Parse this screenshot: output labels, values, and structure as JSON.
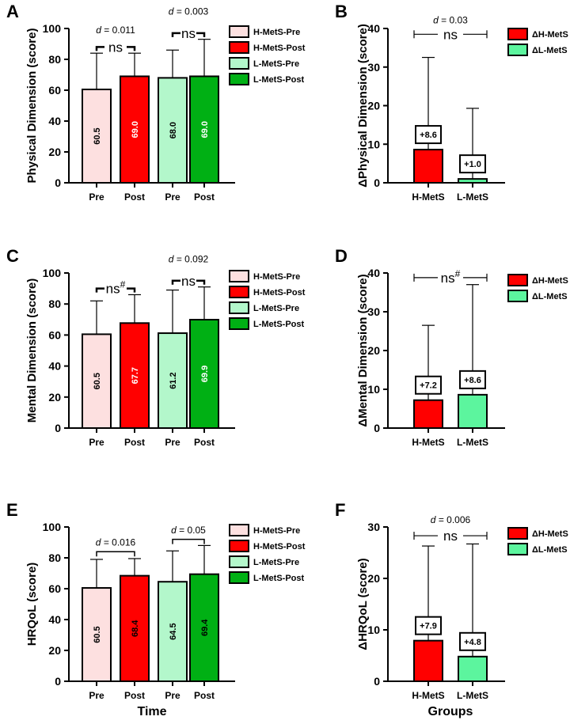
{
  "colors": {
    "h_pre": "#fde0e0",
    "h_post": "#ff0000",
    "l_pre": "#b3f7cb",
    "l_post": "#00b014",
    "delta_h": "#ff0000",
    "delta_l": "#5cf59e"
  },
  "chart_data": [
    {
      "panel": "A",
      "type": "bar",
      "ylabel": "Physical Dimension (score)",
      "xlabel": "",
      "ylim": [
        0,
        100
      ],
      "yticks": [
        0,
        20,
        40,
        60,
        80,
        100
      ],
      "categories": [
        "Pre",
        "Post",
        "Pre",
        "Post"
      ],
      "values": [
        60.5,
        69.0,
        68.0,
        69.0
      ],
      "bar_labels": [
        "60.5",
        "69.0",
        "68.0",
        "69.0"
      ],
      "error_upper": [
        84,
        84,
        86,
        93
      ],
      "fills": [
        "h_pre",
        "h_post",
        "l_pre",
        "l_post"
      ],
      "label_colors": [
        "#000000",
        "#ffffff",
        "#000000",
        "#ffffff"
      ],
      "legend": [
        {
          "label": "H-MetS-Pre",
          "color": "h_pre"
        },
        {
          "label": "H-MetS-Post",
          "color": "h_post"
        },
        {
          "label": "L-MetS-Pre",
          "color": "l_pre"
        },
        {
          "label": "L-MetS-Post",
          "color": "l_post"
        }
      ],
      "annotations": [
        {
          "pair": [
            0,
            1
          ],
          "style": "ns-bracket",
          "ns": "ns",
          "sup": "",
          "d_prefix": "d",
          "d_value": " = 0.011",
          "y": 88,
          "d_y": 97
        },
        {
          "pair": [
            2,
            3
          ],
          "style": "ns-bracket",
          "ns": "ns",
          "sup": "",
          "d_prefix": "d",
          "d_value": " = 0.003",
          "y": 97,
          "d_y": 109
        }
      ]
    },
    {
      "panel": "B",
      "type": "bar",
      "ylabel": "ΔPhysical Dimension (score)",
      "xlabel": "",
      "ylim": [
        0,
        40
      ],
      "yticks": [
        0,
        10,
        20,
        30,
        40
      ],
      "categories": [
        "H-MetS",
        "L-MetS"
      ],
      "values": [
        8.6,
        1.0
      ],
      "bar_labels": [
        "+8.6",
        "+1.0"
      ],
      "error_upper": [
        32.5,
        19.3
      ],
      "fills": [
        "delta_h",
        "delta_l"
      ],
      "legend": [
        {
          "label": "ΔH-MetS",
          "color": "delta_h"
        },
        {
          "label": "ΔL-MetS",
          "color": "delta_l"
        }
      ],
      "annotations": [
        {
          "pair": [
            0,
            1
          ],
          "style": "ns-line",
          "ns": "ns",
          "sup": "",
          "d_prefix": "d",
          "d_value": " = 0.03",
          "y": 38.5,
          "d_y": 41.3
        }
      ]
    },
    {
      "panel": "C",
      "type": "bar",
      "ylabel": "Mental Dimension (score)",
      "xlabel": "",
      "ylim": [
        0,
        100
      ],
      "yticks": [
        0,
        20,
        40,
        60,
        80,
        100
      ],
      "categories": [
        "Pre",
        "Post",
        "Pre",
        "Post"
      ],
      "values": [
        60.5,
        67.7,
        61.2,
        69.9
      ],
      "bar_labels": [
        "60.5",
        "67.7",
        "61.2",
        "69.9"
      ],
      "error_upper": [
        82,
        86,
        89,
        91
      ],
      "fills": [
        "h_pre",
        "h_post",
        "l_pre",
        "l_post"
      ],
      "label_colors": [
        "#000000",
        "#ffffff",
        "#000000",
        "#ffffff"
      ],
      "legend": [
        {
          "label": "H-MetS-Pre",
          "color": "h_pre"
        },
        {
          "label": "H-MetS-Post",
          "color": "h_post"
        },
        {
          "label": "L-MetS-Pre",
          "color": "l_pre"
        },
        {
          "label": "L-MetS-Post",
          "color": "l_post"
        }
      ],
      "annotations": [
        {
          "pair": [
            0,
            1
          ],
          "style": "ns-bracket",
          "ns": "ns",
          "sup": "#",
          "d_prefix": "",
          "d_value": "",
          "y": 90,
          "d_y": 0
        },
        {
          "pair": [
            2,
            3
          ],
          "style": "ns-bracket",
          "ns": "ns",
          "sup": "",
          "d_prefix": "d",
          "d_value": " = 0.092",
          "y": 95,
          "d_y": 107
        }
      ]
    },
    {
      "panel": "D",
      "type": "bar",
      "ylabel": "ΔMental Dimension (score)",
      "xlabel": "",
      "ylim": [
        0,
        40
      ],
      "yticks": [
        0,
        10,
        20,
        30,
        40
      ],
      "categories": [
        "H-MetS",
        "L-MetS"
      ],
      "values": [
        7.2,
        8.6
      ],
      "bar_labels": [
        "+7.2",
        "+8.6"
      ],
      "error_upper": [
        26.5,
        37.0
      ],
      "fills": [
        "delta_h",
        "delta_l"
      ],
      "legend": [
        {
          "label": "ΔH-MetS",
          "color": "delta_h"
        },
        {
          "label": "ΔL-MetS",
          "color": "delta_l"
        }
      ],
      "annotations": [
        {
          "pair": [
            0,
            1
          ],
          "style": "ns-line",
          "ns": "ns",
          "sup": "#",
          "d_prefix": "",
          "d_value": "",
          "y": 38.8,
          "d_y": 0
        }
      ]
    },
    {
      "panel": "E",
      "type": "bar",
      "ylabel": "HRQoL (score)",
      "xlabel": "Time",
      "ylim": [
        0,
        100
      ],
      "yticks": [
        0,
        20,
        40,
        60,
        80,
        100
      ],
      "categories": [
        "Pre",
        "Post",
        "Pre",
        "Post"
      ],
      "values": [
        60.5,
        68.4,
        64.5,
        69.4
      ],
      "bar_labels": [
        "60.5",
        "68.4",
        "64.5",
        "69.4"
      ],
      "error_upper": [
        79,
        79.5,
        84.5,
        88
      ],
      "fills": [
        "h_pre",
        "h_post",
        "l_pre",
        "l_post"
      ],
      "label_colors": [
        "#000000",
        "#000000",
        "#000000",
        "#000000"
      ],
      "legend": [
        {
          "label": "H-MetS-Pre",
          "color": "h_pre"
        },
        {
          "label": "H-MetS-Post",
          "color": "h_post"
        },
        {
          "label": "L-MetS-Pre",
          "color": "l_pre"
        },
        {
          "label": "L-MetS-Post",
          "color": "l_post"
        }
      ],
      "annotations": [
        {
          "pair": [
            0,
            1
          ],
          "style": "bracket",
          "ns": "",
          "sup": "",
          "d_prefix": "d",
          "d_value": " = 0.016",
          "y": 84,
          "d_y": 88
        },
        {
          "pair": [
            2,
            3
          ],
          "style": "bracket",
          "ns": "",
          "sup": "",
          "d_prefix": "d",
          "d_value": " = 0.05",
          "y": 92,
          "d_y": 96
        }
      ]
    },
    {
      "panel": "F",
      "type": "bar",
      "ylabel": "ΔHRQoL (score)",
      "xlabel": "Groups",
      "ylim": [
        0,
        30
      ],
      "yticks": [
        0,
        10,
        20,
        30
      ],
      "categories": [
        "H-MetS",
        "L-MetS"
      ],
      "values": [
        7.9,
        4.8
      ],
      "bar_labels": [
        "+7.9",
        "+4.8"
      ],
      "error_upper": [
        26.3,
        26.7
      ],
      "fills": [
        "delta_h",
        "delta_l"
      ],
      "legend": [
        {
          "label": "ΔH-MetS",
          "color": "delta_h"
        },
        {
          "label": "ΔL-MetS",
          "color": "delta_l"
        }
      ],
      "annotations": [
        {
          "pair": [
            0,
            1
          ],
          "style": "ns-line",
          "ns": "ns",
          "sup": "",
          "d_prefix": "d",
          "d_value": " = 0.006",
          "y": 28.3,
          "d_y": 30.8
        }
      ]
    }
  ]
}
